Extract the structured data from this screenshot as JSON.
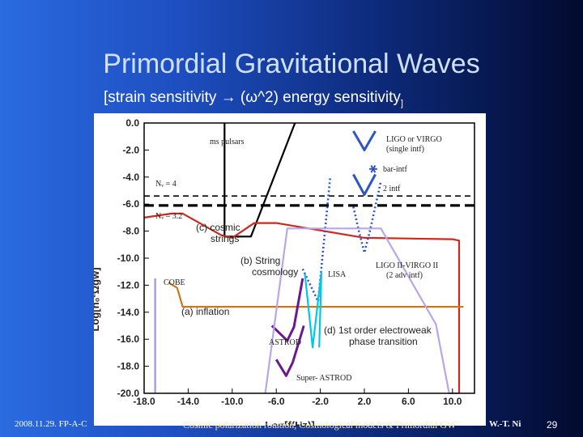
{
  "slide": {
    "title": "Primordial Gravitational Waves",
    "subtitle_main": "[strain sensitivity → (ω^2) energy sensitivity",
    "subtitle_sub": "]",
    "footer_left": "2008.11.29. FP-A-C",
    "footer_center": "Cosmic polarization rotation, Cosmological models & Primordial GW",
    "footer_right": "W.-T. Ni",
    "page_number": "29"
  },
  "chart_data": {
    "type": "line",
    "title": "",
    "xlabel": "Log[f(Hz)]",
    "ylabel": "Log[h₀²Ωgw]",
    "xlim": [
      -18.0,
      12.0
    ],
    "ylim": [
      -20.0,
      0.0
    ],
    "xticks": [
      -18.0,
      -14.0,
      -10.0,
      -6.0,
      -2.0,
      2.0,
      6.0,
      10.0
    ],
    "xtick_labels": [
      "-18.0",
      "-14.0",
      "-10.0",
      "-6.0",
      "-2.0",
      "2.0",
      "6.0",
      "10.0"
    ],
    "yticks": [
      0.0,
      -2.0,
      -4.0,
      -6.0,
      -8.0,
      -10.0,
      -12.0,
      -14.0,
      -16.0,
      -18.0,
      -20.0
    ],
    "ytick_labels": [
      "0.0",
      "-2.0",
      "-4.0",
      "-6.0",
      "-8.0",
      "-10.0",
      "-12.0",
      "-14.0",
      "-16.0",
      "-18.0",
      "-20.0"
    ],
    "series": [
      {
        "name": "Nv = 4",
        "color": "#000000",
        "style": "dashed",
        "x": [
          -18,
          12
        ],
        "y": [
          -5.4,
          -5.4
        ]
      },
      {
        "name": "Nv = 3.2",
        "color": "#000000",
        "style": "dashed-thick",
        "x": [
          -18,
          12
        ],
        "y": [
          -6.1,
          -6.1
        ]
      },
      {
        "name": "ms pulsars",
        "color": "#000000",
        "style": "solid",
        "x": [
          -10.7,
          -10.7,
          -8.3,
          -4.3
        ],
        "y": [
          0.0,
          -8.4,
          -8.4,
          0.0
        ]
      },
      {
        "name": "(c) cosmic strings",
        "color": "#cc2a20",
        "style": "solid",
        "x": [
          -18,
          -15.5,
          -14.5,
          -11.0,
          -10.0,
          -8.0,
          -6.0,
          2.0,
          10.0,
          10.6,
          10.6
        ],
        "y": [
          -7.0,
          -6.7,
          -6.7,
          -8.3,
          -8.5,
          -7.4,
          -7.4,
          -8.5,
          -8.6,
          -8.7,
          -20.0
        ]
      },
      {
        "name": "(a) inflation",
        "color": "#c8781e",
        "style": "solid",
        "x": [
          -15.8,
          -15.0,
          -14.5,
          11.0
        ],
        "y": [
          -11.8,
          -12.2,
          -13.6,
          -13.6
        ]
      },
      {
        "name": "LIGO or VIRGO (single intf)",
        "color": "#2e54c8",
        "style": "solid",
        "x": [
          1.0,
          2.0,
          3.0
        ],
        "y": [
          -0.6,
          -2.0,
          -0.6
        ]
      },
      {
        "name": "bar-intf",
        "color": "#2e54c8",
        "style": "marker",
        "x": [
          2.8
        ],
        "y": [
          -3.4
        ]
      },
      {
        "name": "2 intf",
        "color": "#2e54c8",
        "style": "solid",
        "x": [
          1.0,
          2.0,
          3.0
        ],
        "y": [
          -3.8,
          -5.3,
          -3.8
        ]
      },
      {
        "name": "LIGO II-VIRGO II (2 adv intf)",
        "color": "#2e54c8",
        "style": "dotted",
        "x": [
          1.0,
          1.5,
          2.0,
          2.5,
          3.5
        ],
        "y": [
          -6.2,
          -8.0,
          -9.6,
          -8.0,
          -4.3
        ]
      },
      {
        "name": "LISA",
        "color": "#2e54c8",
        "style": "dotted",
        "x": [
          -3.6,
          -2.2,
          -1.1
        ],
        "y": [
          -10.8,
          -13.2,
          -4.0
        ]
      },
      {
        "name": "(d) 1st order electroweak phase transition",
        "color": "#00c8e6",
        "style": "solid",
        "x": [
          -3.4,
          -2.7,
          -1.9,
          -2.1
        ],
        "y": [
          -11.2,
          -16.6,
          -11.0,
          -16.6
        ]
      },
      {
        "name": "ASTROD",
        "color": "#6a1a8c",
        "style": "solid",
        "x": [
          -6.4,
          -5.0,
          -4.4,
          -3.6
        ],
        "y": [
          -15.0,
          -16.1,
          -15.1,
          -11.5
        ]
      },
      {
        "name": "Super- ASTROD",
        "color": "#6a1a8c",
        "style": "solid",
        "x": [
          -6.0,
          -5.1,
          -4.5,
          -3.5
        ],
        "y": [
          -17.5,
          -18.7,
          -17.7,
          -15.0
        ]
      },
      {
        "name": "COBE",
        "color": "#9b95e8",
        "style": "solid",
        "x": [
          -17.0,
          -17.0
        ],
        "y": [
          -11.5,
          -20.0
        ]
      },
      {
        "name": "Upper bound envelope",
        "color": "#b7a7ea",
        "style": "solid",
        "x": [
          -7.0,
          -5.0,
          3.5,
          8.5,
          9.7,
          10.5
        ],
        "y": [
          -20.0,
          -7.8,
          -7.8,
          -14.9,
          -20.0,
          -20.0
        ]
      }
    ],
    "annotations": [
      "ms pulsars",
      "Nᵥ = 4",
      "Nᵥ = 3.2",
      "(c) cosmic",
      "strings",
      "(b) String",
      "cosmology",
      "COBE",
      "(a) inflation",
      "LIGO or VIRGO",
      "(single intf)",
      "bar-intf",
      "2 intf",
      "LISA",
      "LIGO II-VIRGO II",
      "(2 adv intf)",
      "(d) 1st order electroweak",
      "phase transition",
      "ASTROD",
      "Super- ASTROD"
    ]
  }
}
